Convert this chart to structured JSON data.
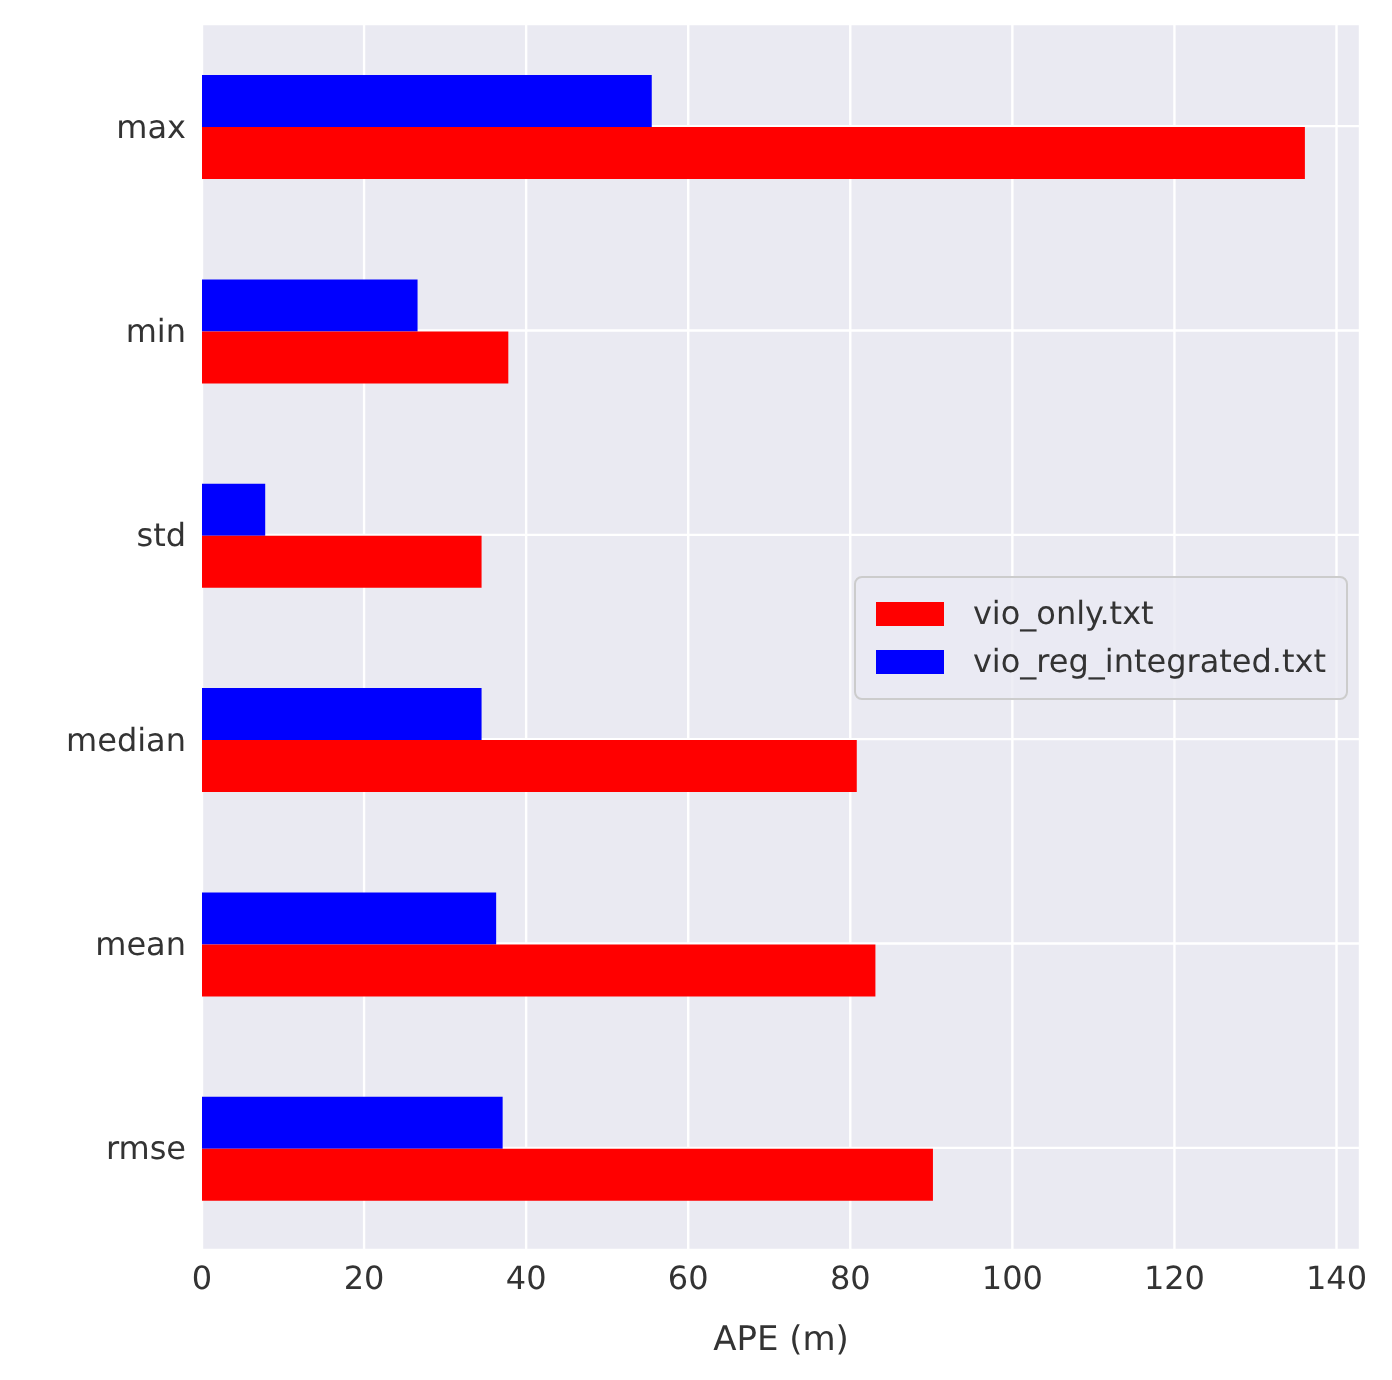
{
  "chart_data": {
    "type": "bar",
    "orientation": "horizontal",
    "xlabel": "APE (m)",
    "categories": [
      "max",
      "min",
      "std",
      "median",
      "mean",
      "rmse"
    ],
    "series": [
      {
        "name": "vio_only.txt",
        "color": "#ff0000",
        "values": [
          136.1,
          37.8,
          34.5,
          80.8,
          83.1,
          90.2
        ]
      },
      {
        "name": "vio_reg_integrated.txt",
        "color": "#0000ff",
        "values": [
          55.5,
          26.6,
          7.8,
          34.5,
          36.3,
          37.1
        ]
      }
    ],
    "xlim": [
      0,
      142.9
    ],
    "xticks": [
      0,
      20,
      40,
      60,
      80,
      100,
      120,
      140
    ],
    "grid": true,
    "legend": "right"
  }
}
